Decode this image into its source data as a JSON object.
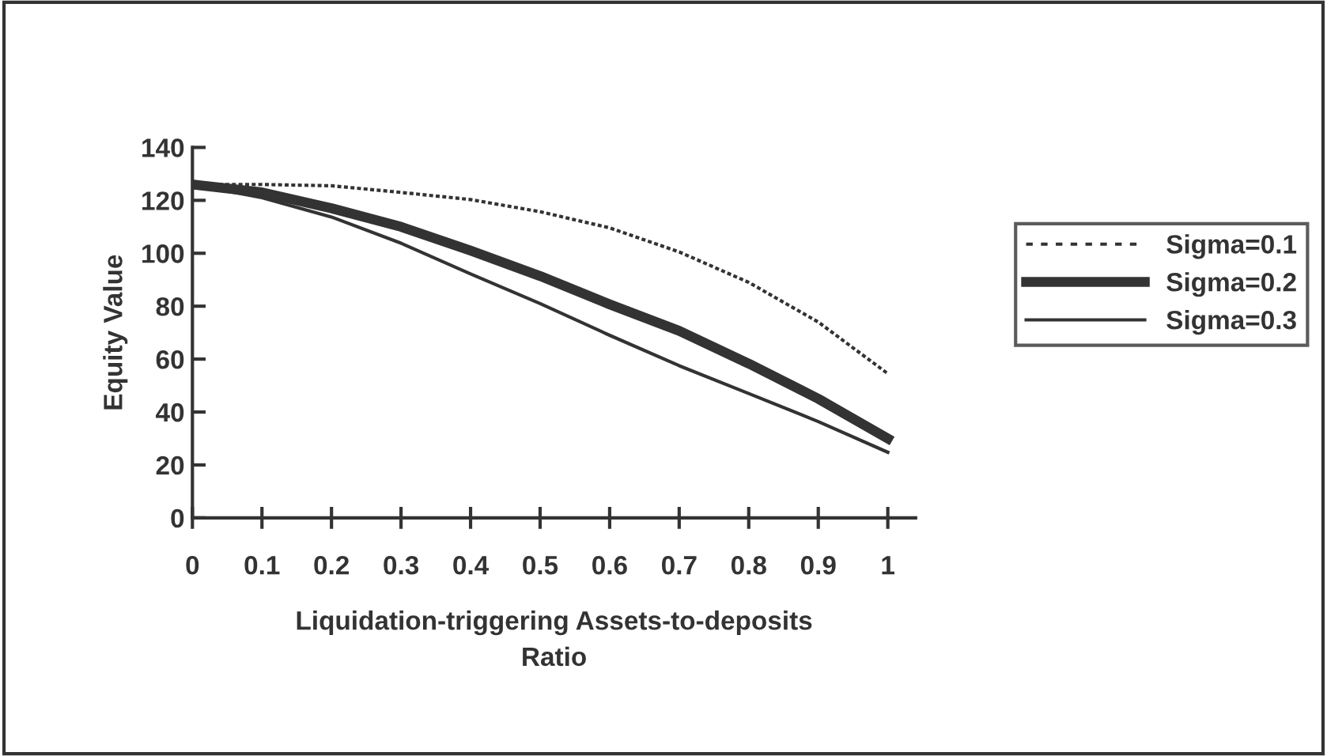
{
  "chart_data": {
    "type": "line",
    "xlabel": "Liquidation-triggering Assets-to-deposits\nRatio",
    "ylabel": "Equity Value",
    "categories": [
      "0",
      "0.1",
      "0.2",
      "0.3",
      "0.4",
      "0.5",
      "0.6",
      "0.7",
      "0.8",
      "0.9",
      "1"
    ],
    "series": [
      {
        "name": "Sigma=0.1",
        "color": "#333333",
        "line_style": "dotted",
        "values": [
          126,
          126,
          125.5,
          123,
          120.3,
          115.7,
          109.6,
          100.5,
          89,
          74,
          54.5
        ]
      },
      {
        "name": "Sigma=0.2",
        "color": "#333333",
        "line_style": "solid",
        "values": [
          126,
          123,
          117,
          110,
          101,
          91.4,
          80.7,
          70.7,
          58.3,
          45,
          30
        ]
      },
      {
        "name": "Sigma=0.3",
        "color": "#333333",
        "line_style": "solid",
        "values": [
          126,
          121,
          113.7,
          103.8,
          92.2,
          81,
          69,
          57.5,
          47,
          36.4,
          24.8
        ]
      }
    ],
    "ylim": [
      0,
      140
    ],
    "yticks": [
      0,
      20,
      40,
      60,
      80,
      100,
      120,
      140
    ],
    "grid": false,
    "legend": "right",
    "marker": "none"
  }
}
